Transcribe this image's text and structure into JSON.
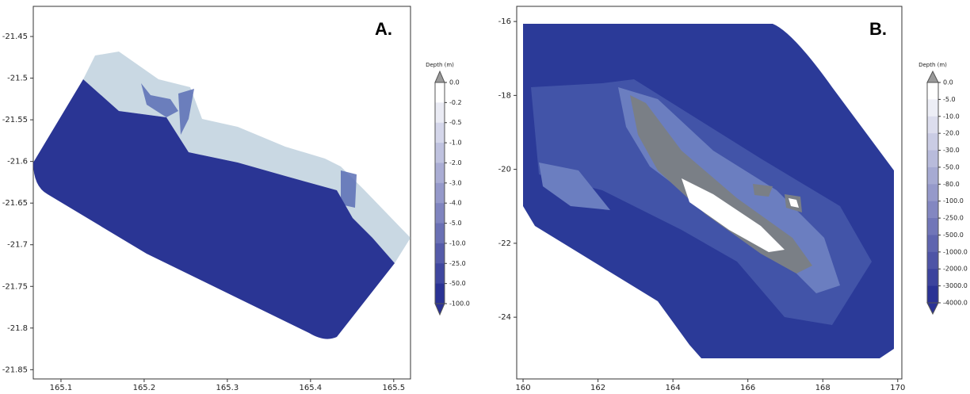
{
  "panels": [
    {
      "label": "A.",
      "xlim": [
        165.0667,
        165.5202
      ],
      "ylim": [
        -21.8611,
        -21.4138
      ],
      "xticks": [
        165.1,
        165.2,
        165.3,
        165.4,
        165.5
      ],
      "yticks": [
        -21.45,
        -21.5,
        -21.55,
        -21.6,
        -21.65,
        -21.7,
        -21.75,
        -21.8,
        -21.85
      ],
      "colorbar": {
        "title": "Depth (m)",
        "ticks": [
          {
            "value": 0,
            "label": "0.0"
          },
          -0.2,
          -0.5,
          {
            "value": -1,
            "label": "-1.0"
          },
          {
            "value": -2,
            "label": "-2.0"
          },
          {
            "value": -3,
            "label": "-3.0"
          },
          {
            "value": -4,
            "label": "-4.0"
          },
          {
            "value": -5,
            "label": "-5.0"
          },
          {
            "value": -10,
            "label": "-10.0"
          },
          {
            "value": -25,
            "label": "-25.0"
          },
          {
            "value": -50,
            "label": "-50.0"
          },
          {
            "value": -100,
            "label": "-100.0"
          }
        ]
      }
    },
    {
      "label": "B.",
      "xlim": [
        159.83,
        170.11
      ],
      "ylim": [
        -25.67,
        -15.59
      ],
      "xticks": [
        160,
        162,
        164,
        166,
        168,
        170
      ],
      "yticks": [
        -16,
        -18,
        -20,
        -22,
        -24
      ],
      "colorbar": {
        "title": "Depth (m)",
        "ticks": [
          {
            "value": 0,
            "label": "0.0"
          },
          {
            "value": -5,
            "label": "-5.0"
          },
          {
            "value": -10,
            "label": "-10.0"
          },
          {
            "value": -20,
            "label": "-20.0"
          },
          {
            "value": -30,
            "label": "-30.0"
          },
          {
            "value": -50,
            "label": "-50.0"
          },
          {
            "value": -80,
            "label": "-80.0"
          },
          {
            "value": -100,
            "label": "-100.0"
          },
          {
            "value": -250,
            "label": "-250.0"
          },
          {
            "value": -500,
            "label": "-500.0"
          },
          {
            "value": -1000,
            "label": "-1000.0"
          },
          {
            "value": -2000,
            "label": "-2000.0"
          },
          {
            "value": -3000,
            "label": "-3000.0"
          },
          {
            "value": -4000,
            "label": "-4000.0"
          }
        ]
      }
    }
  ]
}
